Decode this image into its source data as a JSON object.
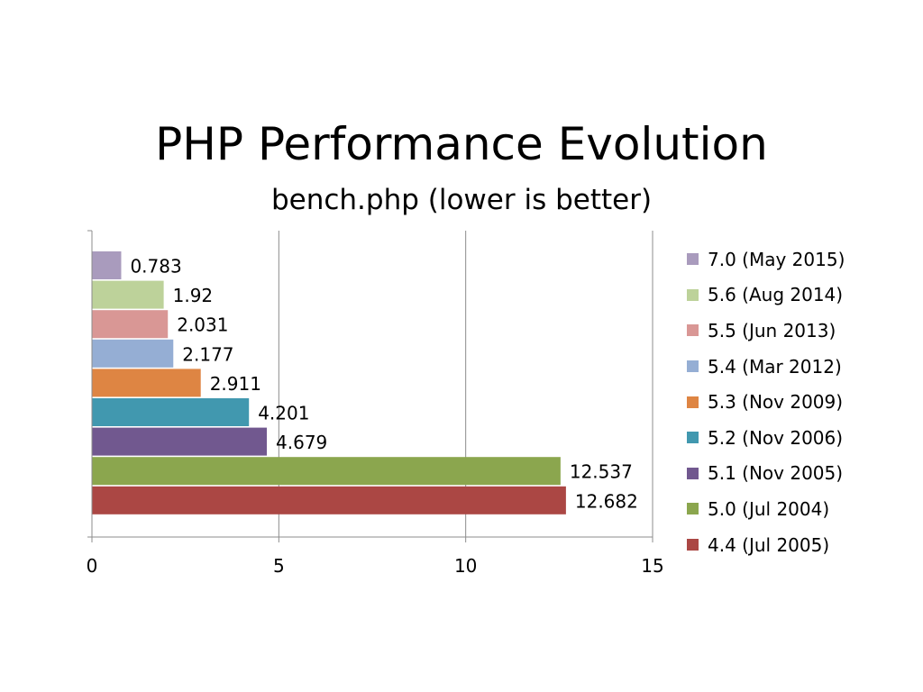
{
  "slide": {
    "title": "PHP Performance Evolution",
    "subtitle": "bench.php (lower is better)"
  },
  "chart_data": {
    "type": "bar",
    "orientation": "horizontal",
    "title": "PHP Performance Evolution",
    "subtitle": "bench.php (lower is better)",
    "xlabel": "",
    "ylabel": "",
    "xlim": [
      0,
      15
    ],
    "x_ticks": [
      "0",
      "5",
      "10",
      "15"
    ],
    "grid": "vertical",
    "legend_position": "right",
    "series": [
      {
        "name": "7.0 (May 2015)",
        "value": 0.783,
        "label": "0.783",
        "color": "#A99BBD"
      },
      {
        "name": "5.6 (Aug 2014)",
        "value": 1.92,
        "label": "1.92",
        "color": "#BDD29A"
      },
      {
        "name": "5.5 (Jun 2013)",
        "value": 2.031,
        "label": "2.031",
        "color": "#D99795"
      },
      {
        "name": "5.4 (Mar 2012)",
        "value": 2.177,
        "label": "2.177",
        "color": "#95AED4"
      },
      {
        "name": "5.3 (Nov 2009)",
        "value": 2.911,
        "label": "2.911",
        "color": "#DE8543"
      },
      {
        "name": "5.2 (Nov 2006)",
        "value": 4.201,
        "label": "4.201",
        "color": "#4198AF"
      },
      {
        "name": "5.1 (Nov 2005)",
        "value": 4.679,
        "label": "4.679",
        "color": "#71588F"
      },
      {
        "name": "5.0 (Jul 2004)",
        "value": 12.537,
        "label": "12.537",
        "color": "#8BA64E"
      },
      {
        "name": "4.4 (Jul 2005)",
        "value": 12.682,
        "label": "12.682",
        "color": "#AB4744"
      }
    ]
  }
}
